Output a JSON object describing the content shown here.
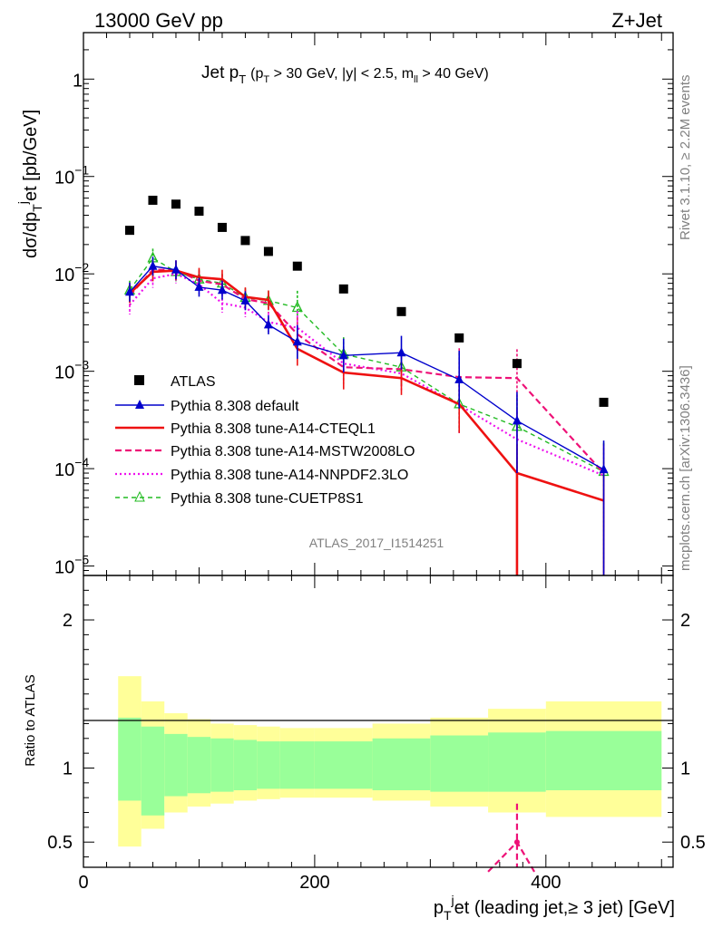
{
  "header": {
    "left": "13000 GeV pp",
    "right": "Z+Jet"
  },
  "title": {
    "main": "Jet p",
    "main_sub": "T",
    "cuts_a": "(p",
    "cuts_a_sub": "T",
    "cuts_b": " > 30 GeV, |y| < 2.5, m",
    "cuts_b_sub": "ll",
    "cuts_c": " > 40 GeV)"
  },
  "side_labels": {
    "rivet": "Rivet 3.1.10, ≥ 2.2M events",
    "mcplots": "mcplots.cern.ch [arXiv:1306.3436]"
  },
  "watermark": "ATLAS_2017_I1514251",
  "colors": {
    "atlas": "#000000",
    "default": "#0000cc",
    "cteql1": "#ee1111",
    "mstw": "#ee1177",
    "nnpdf": "#ee11ee",
    "cuetp8s1": "#22bb22",
    "band_inner": "#99ff99",
    "band_outer": "#ffff99"
  },
  "chart_data": [
    {
      "type": "line",
      "panel": "main",
      "ylabel": {
        "a": "dσ/dp",
        "a_sub": "T",
        "b": "j",
        "c": "et [pb/GeV]"
      },
      "yscale": "log",
      "xlim": [
        0,
        510
      ],
      "ylim": [
        8e-06,
        3
      ],
      "y_ticks": [
        {
          "v": 1e-05,
          "label": "10",
          "exp": "−5"
        },
        {
          "v": 0.0001,
          "label": "10",
          "exp": "−4"
        },
        {
          "v": 0.001,
          "label": "10",
          "exp": "−3"
        },
        {
          "v": 0.01,
          "label": "10",
          "exp": "−2"
        },
        {
          "v": 0.1,
          "label": "10",
          "exp": "−1"
        },
        {
          "v": 1,
          "label": "1",
          "exp": ""
        }
      ],
      "x": [
        40,
        60,
        80,
        100,
        120,
        140,
        160,
        185,
        225,
        275,
        325,
        375,
        450
      ],
      "bin_edges": [
        30,
        50,
        70,
        90,
        110,
        130,
        150,
        170,
        200,
        250,
        300,
        350,
        400,
        500
      ],
      "series": [
        {
          "key": "atlas",
          "name": "ATLAS",
          "style": "square",
          "values": [
            0.028,
            0.057,
            0.052,
            0.044,
            0.03,
            0.022,
            0.017,
            0.012,
            0.007,
            0.0041,
            0.0022,
            0.0012,
            0.00048
          ]
        },
        {
          "key": "default",
          "name": "Pythia 8.308 default",
          "style": "solid-triangle",
          "values": [
            0.0065,
            0.012,
            0.011,
            0.0073,
            0.0068,
            0.0053,
            0.003,
            0.002,
            0.00145,
            0.00155,
            0.00082,
            0.00031,
            9.8e-05
          ]
        },
        {
          "key": "cteql1",
          "name": "Pythia 8.308 tune-A14-CTEQL1",
          "style": "thick",
          "values": [
            0.0063,
            0.0105,
            0.0108,
            0.0092,
            0.0088,
            0.0058,
            0.0054,
            0.0017,
            0.00097,
            0.00085,
            0.00046,
            9e-05,
            4.7e-05
          ]
        },
        {
          "key": "mstw",
          "name": "Pythia 8.308 tune-A14-MSTW2008LO",
          "style": "dashed",
          "values": [
            0.006,
            0.011,
            0.011,
            0.0085,
            0.0078,
            0.0055,
            0.005,
            0.0024,
            0.0011,
            0.00105,
            0.00087,
            0.00085,
            9e-05
          ]
        },
        {
          "key": "nnpdf",
          "name": "Pythia 8.308 tune-A14-NNPDF2.3LO",
          "style": "dotted",
          "values": [
            0.0048,
            0.009,
            0.01,
            0.0078,
            0.005,
            0.0045,
            0.0032,
            0.0028,
            0.0012,
            0.00095,
            0.00045,
            0.0002,
            8.5e-05
          ]
        },
        {
          "key": "cuetp8s1",
          "name": "Pythia 8.308 tune-CUETP8S1",
          "style": "dashed-open-triangle",
          "values": [
            0.0068,
            0.0145,
            0.0105,
            0.0088,
            0.008,
            0.0057,
            0.0053,
            0.0045,
            0.0015,
            0.0011,
            0.00046,
            0.00027,
            9.3e-05
          ]
        }
      ]
    },
    {
      "type": "area",
      "panel": "ratio",
      "ylabel": "Ratio to ATLAS",
      "xlabel": {
        "a": "p",
        "a_sub": "T",
        "b": "j",
        "c": "et (leading jet,≥ 3 jet) [GeV]"
      },
      "xlim": [
        0,
        510
      ],
      "ylim": [
        0.33,
        2.3
      ],
      "y_ticks": [
        0.5,
        1,
        2
      ],
      "x_ticks": [
        0,
        200,
        400
      ],
      "bin_edges": [
        30,
        50,
        70,
        90,
        110,
        130,
        150,
        170,
        200,
        250,
        300,
        350,
        400,
        500
      ],
      "inner_band_low": [
        0.78,
        0.68,
        0.81,
        0.83,
        0.84,
        0.85,
        0.86,
        0.86,
        0.86,
        0.85,
        0.84,
        0.84,
        0.85
      ],
      "inner_band_high": [
        1.34,
        1.28,
        1.23,
        1.21,
        1.2,
        1.19,
        1.18,
        1.18,
        1.18,
        1.2,
        1.22,
        1.24,
        1.25
      ],
      "outer_band_low": [
        0.47,
        0.59,
        0.7,
        0.74,
        0.76,
        0.78,
        0.79,
        0.8,
        0.8,
        0.78,
        0.74,
        0.7,
        0.67
      ],
      "outer_band_high": [
        1.62,
        1.45,
        1.37,
        1.33,
        1.3,
        1.29,
        1.28,
        1.27,
        1.27,
        1.3,
        1.34,
        1.4,
        1.45
      ],
      "mstw_ratio_x": [
        350,
        375,
        390
      ],
      "mstw_ratio_values": [
        0.3,
        0.5,
        0.3
      ],
      "mstw_ratio_err_high": 0.76
    }
  ]
}
